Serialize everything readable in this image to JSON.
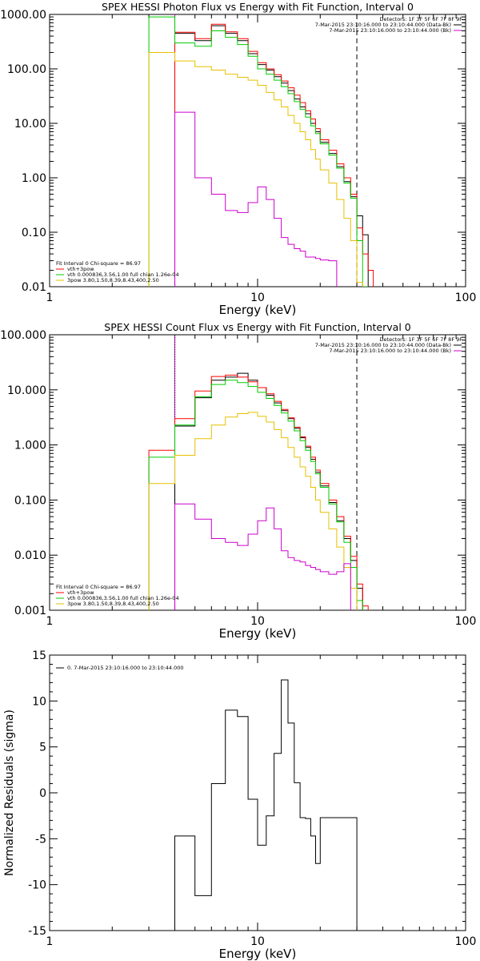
{
  "chart_data": [
    {
      "type": "line",
      "title": "SPEX HESSI Photon Flux vs Energy with Fit Function, Interval 0",
      "xlabel": "Energy (keV)",
      "ylabel": "",
      "xscale": "log",
      "yscale": "log",
      "xlim": [
        1,
        100
      ],
      "ylim": [
        0.01,
        1000
      ],
      "x_ticks": [
        "1",
        "10",
        "100"
      ],
      "y_ticks": [
        "0.01",
        "0.10",
        "1.00",
        "10.00",
        "100.00",
        "1000.00"
      ],
      "legend_header": "Detectors: 1F 3F 5F 6F 7F 8F 9F",
      "legend": [
        {
          "text": "7-Mar-2015 23:10:16.000 to 23:10:44.000 (Data-Bk)",
          "color": "#000000"
        },
        {
          "text": "7-Mar-2015 23:10:16.000 to 23:10:44.000 (Bk)",
          "color": "#cc00cc"
        }
      ],
      "fit_legend_header": "Fit Interval 0   Chi-square = 86.97",
      "fit_legend": [
        {
          "text": "vth+3pow",
          "color": "#ff0000"
        },
        {
          "text": "vth 0.000836,3.56,1.00   full chian 1.26e-04",
          "color": "#00cc00"
        },
        {
          "text": "3pow 3.80,1.50,8.39,8.43,400,2.50",
          "color": "#e6c000"
        }
      ],
      "x_edges": [
        3,
        4,
        5,
        6,
        7,
        8,
        9,
        10,
        11,
        12,
        13,
        14,
        15,
        16,
        17,
        18,
        19,
        20,
        22,
        24,
        26,
        28,
        30,
        32,
        34,
        36
      ],
      "series": [
        {
          "name": "Data-Bk",
          "color": "#000000",
          "values": [
            null,
            450,
            330,
            620,
            450,
            330,
            190,
            120,
            95,
            72,
            55,
            40,
            28,
            20,
            15,
            10,
            7,
            4.5,
            2.8,
            1.6,
            0.85,
            0.45,
            0.2,
            0.09,
            null
          ]
        },
        {
          "name": "vth+3pow",
          "color": "#ff0000",
          "values": [
            null,
            470,
            360,
            660,
            480,
            360,
            210,
            130,
            100,
            78,
            60,
            45,
            33,
            24,
            17,
            12,
            8,
            5,
            3.2,
            1.8,
            1.0,
            0.5,
            0.12,
            0.04,
            0.02
          ]
        },
        {
          "name": "vth",
          "color": "#00cc00",
          "values": [
            900,
            300,
            260,
            500,
            380,
            280,
            170,
            100,
            80,
            62,
            47,
            35,
            25,
            18,
            13,
            9,
            6.5,
            4.2,
            2.6,
            1.5,
            0.8,
            0.42,
            0.07,
            0.01,
            null
          ]
        },
        {
          "name": "3pow",
          "color": "#e6c000",
          "values": [
            200,
            140,
            110,
            95,
            80,
            70,
            62,
            50,
            37,
            27,
            20,
            14,
            10,
            7,
            5,
            3.3,
            2.2,
            1.4,
            0.8,
            0.4,
            0.18,
            0.07,
            0.012,
            null,
            null
          ]
        },
        {
          "name": "Bk",
          "color": "#cc00cc",
          "values": [
            null,
            16,
            1.0,
            0.5,
            0.25,
            0.23,
            0.35,
            0.68,
            0.4,
            0.18,
            0.08,
            0.06,
            0.05,
            0.045,
            0.035,
            0.035,
            0.033,
            0.031,
            0.03,
            null,
            null,
            null,
            null,
            null,
            null
          ]
        }
      ],
      "vlines": [
        {
          "x": 4,
          "color": "#cc00cc",
          "style": "solid"
        },
        {
          "x": 30,
          "color": "#000000",
          "style": "dashed"
        }
      ]
    },
    {
      "type": "line",
      "title": "SPEX HESSI Count Flux vs Energy with Fit Function, Interval 0",
      "xlabel": "Energy (keV)",
      "ylabel": "",
      "xscale": "log",
      "yscale": "log",
      "xlim": [
        1,
        100
      ],
      "ylim": [
        0.001,
        100
      ],
      "x_ticks": [
        "1",
        "10",
        "100"
      ],
      "y_ticks": [
        "0.001",
        "0.010",
        "0.100",
        "1.000",
        "10.000",
        "100.000"
      ],
      "legend_header": "Detectors: 1F 3F 5F 6F 7F 8F 9F",
      "legend": [
        {
          "text": "7-Mar-2015 23:10:16.000 to 23:10:44.000 (Data-Bk)",
          "color": "#000000"
        },
        {
          "text": "7-Mar-2015 23:10:16.000 to 23:10:44.000 (Bk)",
          "color": "#cc00cc"
        }
      ],
      "fit_legend_header": "Fit Interval 0   Chi-square = 86.97",
      "fit_legend": [
        {
          "text": "vth+3pow",
          "color": "#ff0000"
        },
        {
          "text": "vth 0.000836,3.56,1.00   full chian 1.26e-04",
          "color": "#00cc00"
        },
        {
          "text": "3pow 3.80,1.50,8.39,8.43,400,2.50",
          "color": "#e6c000"
        }
      ],
      "x_edges": [
        3,
        4,
        5,
        6,
        7,
        8,
        9,
        10,
        11,
        12,
        13,
        14,
        15,
        16,
        17,
        18,
        19,
        20,
        22,
        24,
        26,
        28,
        30,
        32,
        34,
        36
      ],
      "series": [
        {
          "name": "Data-Bk",
          "color": "#000000",
          "values": [
            null,
            2.2,
            7.2,
            15,
            17,
            20,
            15,
            11,
            8,
            5.8,
            4.2,
            3.0,
            2.0,
            1.35,
            0.9,
            0.55,
            0.32,
            0.18,
            0.09,
            0.042,
            0.02,
            0.008,
            0.0025,
            null,
            null
          ]
        },
        {
          "name": "vth+3pow",
          "color": "#ff0000",
          "values": [
            0.8,
            3.0,
            9.5,
            17.5,
            18.5,
            17,
            14,
            11,
            8.5,
            6.2,
            4.4,
            3.1,
            2.1,
            1.4,
            0.95,
            0.6,
            0.35,
            0.2,
            0.1,
            0.05,
            0.022,
            0.0095,
            0.003,
            0.0012,
            null
          ]
        },
        {
          "name": "vth",
          "color": "#00cc00",
          "values": [
            0.6,
            2.3,
            7.5,
            12.5,
            15,
            13.5,
            11.5,
            9,
            7,
            5.2,
            3.8,
            2.7,
            1.8,
            1.2,
            0.8,
            0.5,
            0.3,
            0.17,
            0.085,
            0.04,
            0.017,
            0.006,
            0.0015,
            null,
            null
          ]
        },
        {
          "name": "3pow",
          "color": "#e6c000",
          "values": [
            0.2,
            0.65,
            1.3,
            2.3,
            3.2,
            3.7,
            3.9,
            3.3,
            2.6,
            1.9,
            1.35,
            0.9,
            0.6,
            0.4,
            0.27,
            0.17,
            0.1,
            0.06,
            0.03,
            0.014,
            0.006,
            0.0025,
            null,
            null,
            null
          ]
        },
        {
          "name": "Bk",
          "color": "#cc00cc",
          "values": [
            null,
            0.085,
            0.045,
            0.02,
            0.017,
            0.015,
            0.024,
            0.042,
            0.072,
            0.03,
            0.012,
            0.009,
            0.008,
            0.0075,
            0.0065,
            0.006,
            0.0055,
            0.005,
            0.0045,
            0.005,
            0.007,
            null,
            null,
            null,
            null
          ]
        }
      ],
      "vlines": [
        {
          "x": 4,
          "color": "#cc00cc",
          "style": "solid"
        },
        {
          "x": 4,
          "color": "#000000",
          "style": "dotted"
        },
        {
          "x": 30,
          "color": "#000000",
          "style": "dashed"
        }
      ]
    },
    {
      "type": "line",
      "title": "",
      "xlabel": "Energy (keV)",
      "ylabel": "Normalized Residuals (sigma)",
      "xscale": "log",
      "yscale": "linear",
      "xlim": [
        1,
        100
      ],
      "ylim": [
        -15,
        15
      ],
      "x_ticks": [
        "1",
        "10",
        "100"
      ],
      "y_ticks": [
        "-15",
        "-10",
        "-5",
        "0",
        "5",
        "10",
        "15"
      ],
      "legend": [
        {
          "text": "0.  7-Mar-2015 23:10:16.000 to 23:10:44.000",
          "color": "#000000"
        }
      ],
      "x_edges": [
        4,
        5,
        6,
        7,
        8,
        9,
        10,
        11,
        12,
        13,
        14,
        15,
        16,
        17,
        18,
        19,
        20,
        22,
        24,
        26,
        28,
        30
      ],
      "series": [
        {
          "name": "",
          "color": "#000000",
          "values": [
            -4.7,
            -11.2,
            1.0,
            9.0,
            8.3,
            -0.7,
            -5.7,
            -2.5,
            4.3,
            12.3,
            7.6,
            1.1,
            -2.7,
            -2.8,
            -4.7,
            -7.7,
            -2.7,
            -2.7,
            -2.7,
            -2.7,
            -2.7
          ]
        }
      ]
    }
  ]
}
